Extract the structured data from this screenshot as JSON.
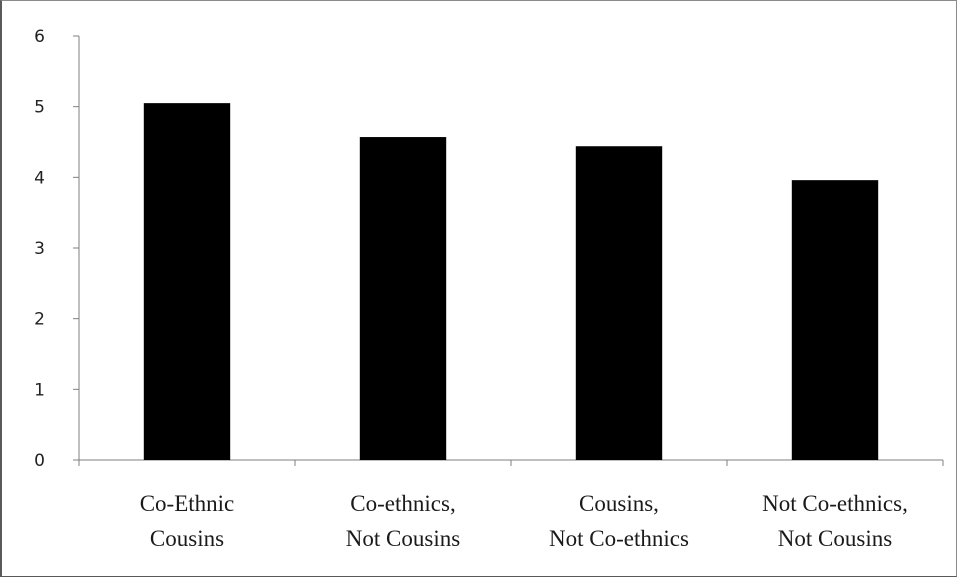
{
  "chart_data": {
    "type": "bar",
    "categories": [
      [
        "Co-Ethnic",
        "Cousins"
      ],
      [
        "Co-ethnics,",
        "Not Cousins"
      ],
      [
        "Cousins,",
        "Not Co-ethnics"
      ],
      [
        "Not Co-ethnics,",
        "Not Cousins"
      ]
    ],
    "values": [
      5.05,
      4.57,
      4.44,
      3.96
    ],
    "ylim": [
      0,
      6
    ],
    "yticks": [
      0,
      1,
      2,
      3,
      4,
      5,
      6
    ],
    "grid": false,
    "bar_color": "#000000",
    "axis_color": "#7f7f7f"
  }
}
